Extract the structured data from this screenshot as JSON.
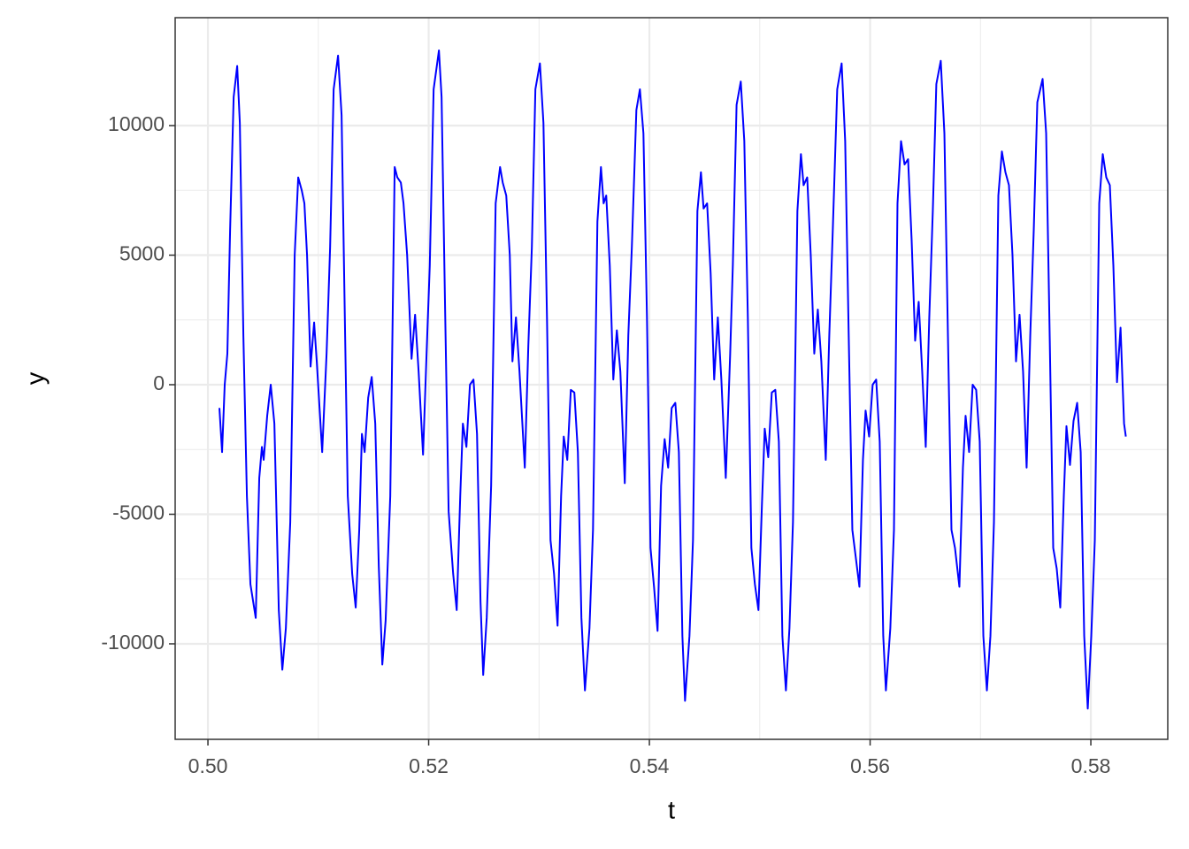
{
  "chart_data": {
    "type": "line",
    "x_label": "t",
    "y_label": "y",
    "xlim": [
      0.49703,
      0.58697
    ],
    "ylim": [
      -13686,
      14164
    ],
    "xticks": [
      {
        "value": 0.5,
        "label": "0.50"
      },
      {
        "value": 0.52,
        "label": "0.52"
      },
      {
        "value": 0.54,
        "label": "0.54"
      },
      {
        "value": 0.56,
        "label": "0.56"
      },
      {
        "value": 0.58,
        "label": "0.58"
      }
    ],
    "yticks": [
      -10000,
      -5000,
      0,
      5000,
      10000
    ],
    "grid": true,
    "series": [
      {
        "color": "#0000ff",
        "x": [
          0.50104,
          0.50128,
          0.50152,
          0.50176,
          0.50201,
          0.50233,
          0.50265,
          0.50289,
          0.50321,
          0.50353,
          0.50385,
          0.50433,
          0.50465,
          0.50489,
          0.50505,
          0.50537,
          0.50569,
          0.50602,
          0.50642,
          0.50674,
          0.50706,
          0.50746,
          0.50786,
          0.50818,
          0.5085,
          0.50874,
          0.50898,
          0.5093,
          0.50962,
          0.50986,
          0.51035,
          0.51075,
          0.51107,
          0.51139,
          0.51179,
          0.51211,
          0.51243,
          0.51267,
          0.51307,
          0.51339,
          0.51371,
          0.51395,
          0.5142,
          0.51452,
          0.51484,
          0.51516,
          0.51548,
          0.5158,
          0.5161,
          0.51652,
          0.51692,
          0.51716,
          0.51748,
          0.51772,
          0.51805,
          0.51845,
          0.51877,
          0.51909,
          0.51949,
          0.51981,
          0.5201,
          0.52045,
          0.52093,
          0.52117,
          0.52149,
          0.52181,
          0.52222,
          0.52254,
          0.52286,
          0.5231,
          0.52342,
          0.52374,
          0.52406,
          0.52438,
          0.5247,
          0.52494,
          0.52526,
          0.52566,
          0.52607,
          0.52647,
          0.52671,
          0.52703,
          0.52735,
          0.52759,
          0.52791,
          0.52823,
          0.52871,
          0.52903,
          0.52935,
          0.52967,
          0.53008,
          0.5304,
          0.53072,
          0.53104,
          0.53136,
          0.53168,
          0.532,
          0.53224,
          0.53256,
          0.53288,
          0.5332,
          0.53352,
          0.53384,
          0.53416,
          0.53457,
          0.53489,
          0.53529,
          0.53561,
          0.53585,
          0.53609,
          0.53641,
          0.53673,
          0.53705,
          0.53737,
          0.53777,
          0.53809,
          0.53841,
          0.53882,
          0.53914,
          0.53946,
          0.53978,
          0.5401,
          0.54042,
          0.54074,
          0.54106,
          0.54138,
          0.5417,
          0.54202,
          0.54235,
          0.54267,
          0.54299,
          0.54323,
          0.54363,
          0.54395,
          0.54435,
          0.54467,
          0.54491,
          0.54523,
          0.54555,
          0.54587,
          0.5462,
          0.54652,
          0.54692,
          0.54732,
          0.54756,
          0.5479,
          0.54828,
          0.5486,
          0.54892,
          0.54924,
          0.54956,
          0.54988,
          0.5502,
          0.55045,
          0.55077,
          0.55109,
          0.55141,
          0.55173,
          0.55205,
          0.55237,
          0.55269,
          0.55301,
          0.55341,
          0.55373,
          0.55397,
          0.5543,
          0.55462,
          0.55494,
          0.55526,
          0.55558,
          0.55598,
          0.5563,
          0.55662,
          0.55702,
          0.55742,
          0.55774,
          0.55806,
          0.55839,
          0.55871,
          0.55903,
          0.55935,
          0.55959,
          0.55991,
          0.56023,
          0.56055,
          0.56087,
          0.56119,
          0.56143,
          0.56183,
          0.56216,
          0.56248,
          0.5628,
          0.56312,
          0.56344,
          0.56376,
          0.56408,
          0.5644,
          0.56472,
          0.56504,
          0.56536,
          0.56568,
          0.566,
          0.5664,
          0.56673,
          0.56705,
          0.56737,
          0.56769,
          0.56809,
          0.56841,
          0.56865,
          0.56897,
          0.56929,
          0.56961,
          0.56993,
          0.57026,
          0.57058,
          0.5709,
          0.57122,
          0.57162,
          0.57194,
          0.57226,
          0.57258,
          0.5729,
          0.57322,
          0.57354,
          0.57386,
          0.57418,
          0.57451,
          0.57483,
          0.57515,
          0.57563,
          0.57595,
          0.57627,
          0.57659,
          0.57691,
          0.57723,
          0.57755,
          0.57779,
          0.57811,
          0.57843,
          0.57876,
          0.57908,
          0.5794,
          0.57972,
          0.58004,
          0.58036,
          0.58076,
          0.58108,
          0.5814,
          0.58172,
          0.58204,
          0.58237,
          0.58269,
          0.58301,
          0.58317
        ],
        "values": [
          -900,
          -2600,
          0,
          1200,
          6000,
          11100,
          12300,
          10100,
          1900,
          -4300,
          -7700,
          -9000,
          -3600,
          -2400,
          -2900,
          -1200,
          0,
          -1500,
          -8700,
          -11000,
          -9400,
          -5300,
          5000,
          8000,
          7500,
          7000,
          5000,
          700,
          2400,
          900,
          -2600,
          1200,
          5300,
          11400,
          12700,
          10400,
          1900,
          -4300,
          -7300,
          -8600,
          -5600,
          -1900,
          -2600,
          -500,
          300,
          -1500,
          -7000,
          -10800,
          -9100,
          -4300,
          8400,
          8000,
          7800,
          7000,
          5000,
          1000,
          2700,
          500,
          -2700,
          1200,
          4600,
          11400,
          12900,
          11100,
          2900,
          -4900,
          -7300,
          -8700,
          -4300,
          -1500,
          -2400,
          0,
          200,
          -1900,
          -8400,
          -11200,
          -9000,
          -3900,
          7000,
          8400,
          7800,
          7300,
          5000,
          900,
          2600,
          500,
          -3200,
          1500,
          5300,
          11400,
          12400,
          10100,
          2600,
          -6000,
          -7300,
          -9300,
          -4300,
          -2000,
          -2900,
          -200,
          -300,
          -2600,
          -9000,
          -11800,
          -9400,
          -5600,
          6300,
          8400,
          7000,
          7300,
          4600,
          200,
          2100,
          500,
          -3800,
          1900,
          5300,
          10600,
          11400,
          9700,
          2600,
          -6300,
          -7800,
          -9500,
          -3900,
          -2100,
          -3200,
          -900,
          -700,
          -2600,
          -9700,
          -12200,
          -9700,
          -6000,
          6700,
          8200,
          6800,
          7000,
          4300,
          200,
          2600,
          200,
          -3600,
          1200,
          4600,
          10800,
          11700,
          9400,
          2600,
          -6300,
          -7700,
          -8700,
          -4600,
          -1700,
          -2800,
          -300,
          -200,
          -2200,
          -9700,
          -11800,
          -9400,
          -5300,
          6700,
          8900,
          7700,
          8000,
          5000,
          1200,
          2900,
          900,
          -2900,
          1900,
          6000,
          11400,
          12400,
          9400,
          1900,
          -5600,
          -6700,
          -7800,
          -2900,
          -1000,
          -2000,
          0,
          200,
          -2200,
          -9700,
          -11800,
          -9400,
          -5600,
          7000,
          9400,
          8500,
          8700,
          5600,
          1700,
          3200,
          500,
          -2400,
          2600,
          6700,
          11600,
          12500,
          9700,
          1900,
          -5600,
          -6300,
          -7800,
          -3200,
          -1200,
          -2600,
          0,
          -200,
          -2200,
          -9700,
          -11800,
          -9700,
          -5300,
          7300,
          9000,
          8200,
          7700,
          5000,
          900,
          2700,
          500,
          -3200,
          1900,
          6000,
          10900,
          11800,
          9700,
          1900,
          -6300,
          -7100,
          -8600,
          -4300,
          -1600,
          -3100,
          -1400,
          -700,
          -2600,
          -9700,
          -12500,
          -9700,
          -6000,
          7000,
          8900,
          8000,
          7700,
          4600,
          100,
          2200,
          -1500,
          -2000
        ]
      }
    ]
  }
}
